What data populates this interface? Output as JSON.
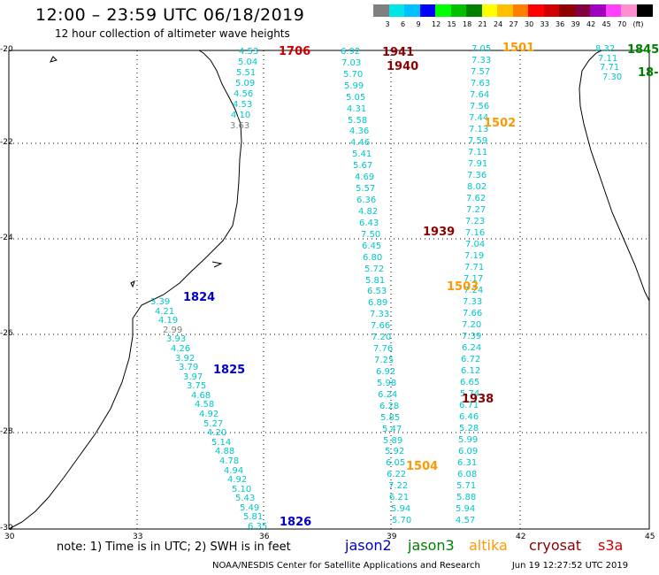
{
  "header": {
    "title": "12:00 – 23:59 UTC 06/18/2019",
    "subtitle": "12 hour collection of altimeter wave heights"
  },
  "scale": {
    "colors": [
      "#808080",
      "#00e5e5",
      "#00c0ff",
      "#0000ff",
      "#00ff00",
      "#00c000",
      "#008000",
      "#ffff00",
      "#ffc000",
      "#ff8000",
      "#ff0000",
      "#d00000",
      "#900000",
      "#800040",
      "#a000c0",
      "#ff40ff",
      "#ff90d0",
      "#000000"
    ],
    "labels": [
      "3",
      "6",
      "9",
      "12",
      "15",
      "18",
      "21",
      "24",
      "27",
      "30",
      "33",
      "36",
      "39",
      "42",
      "45",
      "70",
      "(ft)"
    ]
  },
  "axes": {
    "y_labels": [
      "-20",
      "-22",
      "-24",
      "-26",
      "-28",
      "-30"
    ],
    "x_labels": [
      "30",
      "33",
      "36",
      "39",
      "42",
      "45"
    ]
  },
  "track_colors": {
    "jason2": "#0000cc",
    "jason3": "#008000",
    "altika": "#ff9900",
    "cryosat": "#8b0000",
    "s3a": "#cc0000",
    "value": "#00c8c8",
    "value_gray": "#808080"
  },
  "tracks": [
    {
      "id": "t-1706",
      "sat": "s3a",
      "time": "1706",
      "time_pos": [
        315,
        60
      ],
      "values": [
        "4.53",
        "5.04",
        "5.51",
        "5.09",
        "4.56",
        "4.53",
        "4.10",
        "3.63"
      ],
      "value_colors": {
        "7": "value_gray"
      },
      "start": [
        282,
        60
      ],
      "end": [
        272,
        144
      ]
    },
    {
      "id": "t-1941",
      "sat": "cryosat",
      "time": "1941",
      "time_pos": [
        432,
        61
      ],
      "values": [
        "6.92",
        "7.03",
        "5.70",
        "5.99",
        "5.05",
        "4.31",
        "5.58",
        "4.36",
        "4.46",
        "5.41",
        "5.67",
        "4.69",
        "5.57",
        "6.36",
        "4.82",
        "6.43",
        "7.50",
        "6.45",
        "6.80",
        "5.72",
        "5.81",
        "6.53",
        "6.89",
        "7.33",
        "7.66",
        "7.20",
        "7.76",
        "7.25",
        "6.92",
        "5.98",
        "6.24",
        "6.28",
        "5.85",
        "5.47",
        "5.89",
        "5.92",
        "6.05",
        "6.22",
        "7.22",
        "6.21",
        "5.94",
        "5.70"
      ],
      "start": [
        397,
        60
      ],
      "end": [
        455,
        590
      ]
    },
    {
      "id": "t-1501",
      "sat": "altika",
      "time": "1501",
      "time_pos": [
        568,
        56
      ],
      "values": [
        "7.05",
        "7.33",
        "7.57",
        "7.63",
        "7.64",
        "7.56",
        "7.44",
        "7.13",
        "7.59",
        "7.11",
        "7.91",
        "7.36",
        "8.02",
        "7.62",
        "7.27",
        "7.23",
        "7.16",
        "7.04",
        "7.19",
        "7.71",
        "7.17",
        "7.24",
        "7.33",
        "7.66",
        "7.20",
        "7.39",
        "6.24",
        "6.72",
        "6.12",
        "6.65",
        "5.74",
        "6.71",
        "6.46",
        "5.28",
        "5.99",
        "6.09",
        "6.31",
        "6.08",
        "5.71",
        "5.88",
        "5.94",
        "4.57"
      ],
      "start": [
        545,
        57
      ],
      "end": [
        527,
        590
      ]
    },
    {
      "id": "t-1845",
      "sat": "jason3",
      "time": "1845",
      "time_pos": [
        709,
        58
      ],
      "values": [
        "8.32",
        "7.11",
        "7.71",
        "7.30"
      ],
      "start": [
        685,
        57
      ],
      "end": [
        693,
        89
      ]
    },
    {
      "id": "t-1824",
      "sat": "jason2",
      "time": "1824",
      "time_pos": [
        207,
        338
      ],
      "values": [
        "3.39",
        "4.21",
        "4.19",
        "2.99",
        "3.93",
        "4.26",
        "3.92",
        "3.79",
        "3.97",
        "3.75",
        "4.68",
        "4.58",
        "4.92",
        "5.27",
        "4.20",
        "5.14",
        "4.88",
        "4.78",
        "4.94",
        "4.92",
        "5.10",
        "5.43",
        "5.49",
        "5.81",
        "6.35"
      ],
      "value_colors": {
        "3": "value_gray"
      },
      "start": [
        182,
        343
      ],
      "end": [
        292,
        597
      ]
    }
  ],
  "extra_labels": [
    {
      "text": "1940",
      "sat": "cryosat",
      "pos": [
        437,
        77
      ]
    },
    {
      "text": "1502",
      "sat": "altika",
      "pos": [
        547,
        141
      ]
    },
    {
      "text": "1939",
      "sat": "cryosat",
      "pos": [
        478,
        264
      ]
    },
    {
      "text": "1503",
      "sat": "altika",
      "pos": [
        505,
        326
      ]
    },
    {
      "text": "1825",
      "sat": "jason2",
      "pos": [
        241,
        420
      ]
    },
    {
      "text": "1938",
      "sat": "cryosat",
      "pos": [
        522,
        453
      ]
    },
    {
      "text": "1504",
      "sat": "altika",
      "pos": [
        459,
        529
      ]
    },
    {
      "text": "1826",
      "sat": "jason2",
      "pos": [
        316,
        592
      ]
    },
    {
      "text": "18-",
      "sat": "jason3",
      "pos": [
        721,
        84
      ]
    }
  ],
  "legend": {
    "note": "note: 1) Time is in UTC; 2) SWH is in feet",
    "jason2": "jason2",
    "jason3": "jason3",
    "altika": "altika",
    "cryosat": "cryosat",
    "s3a": "s3a"
  },
  "footer": {
    "credit": "NOAA/NESDIS Center for Satellite Applications and Research",
    "timestamp": "Jun 19 12:27:52 UTC 2019"
  }
}
